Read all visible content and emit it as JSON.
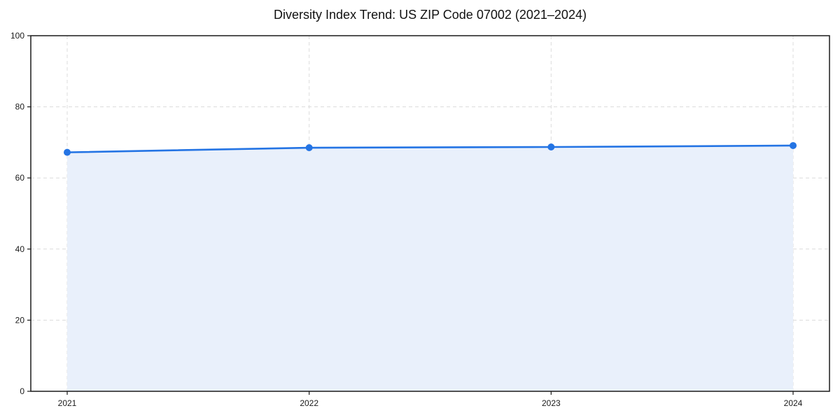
{
  "page": {
    "background": "#ffffff"
  },
  "chart_data": {
    "type": "area",
    "title": "Diversity Index Trend: US ZIP Code 07002 (2021–2024)",
    "x": [
      2021,
      2022,
      2023,
      2024
    ],
    "x_tick_labels": [
      "2021",
      "2022",
      "2023",
      "2024"
    ],
    "series": [
      {
        "name": "Diversity Index",
        "values": [
          67.2,
          68.5,
          68.7,
          69.1
        ]
      }
    ],
    "xlabel": "",
    "ylabel": "",
    "ylim": [
      0,
      100
    ],
    "y_ticks": [
      0,
      20,
      40,
      60,
      80,
      100
    ],
    "y_tick_labels": [
      "0",
      "20",
      "40",
      "60",
      "80",
      "100"
    ],
    "grid": "dashed-both-axes",
    "legend_position": "none",
    "colors": {
      "line": "#2474e4",
      "marker": "#2474e4",
      "area_fill": "#e9f0fb",
      "grid": "#dcdcdc",
      "spine": "#1a1a1a",
      "text": "#1a1a1a",
      "background": "#ffffff"
    }
  }
}
